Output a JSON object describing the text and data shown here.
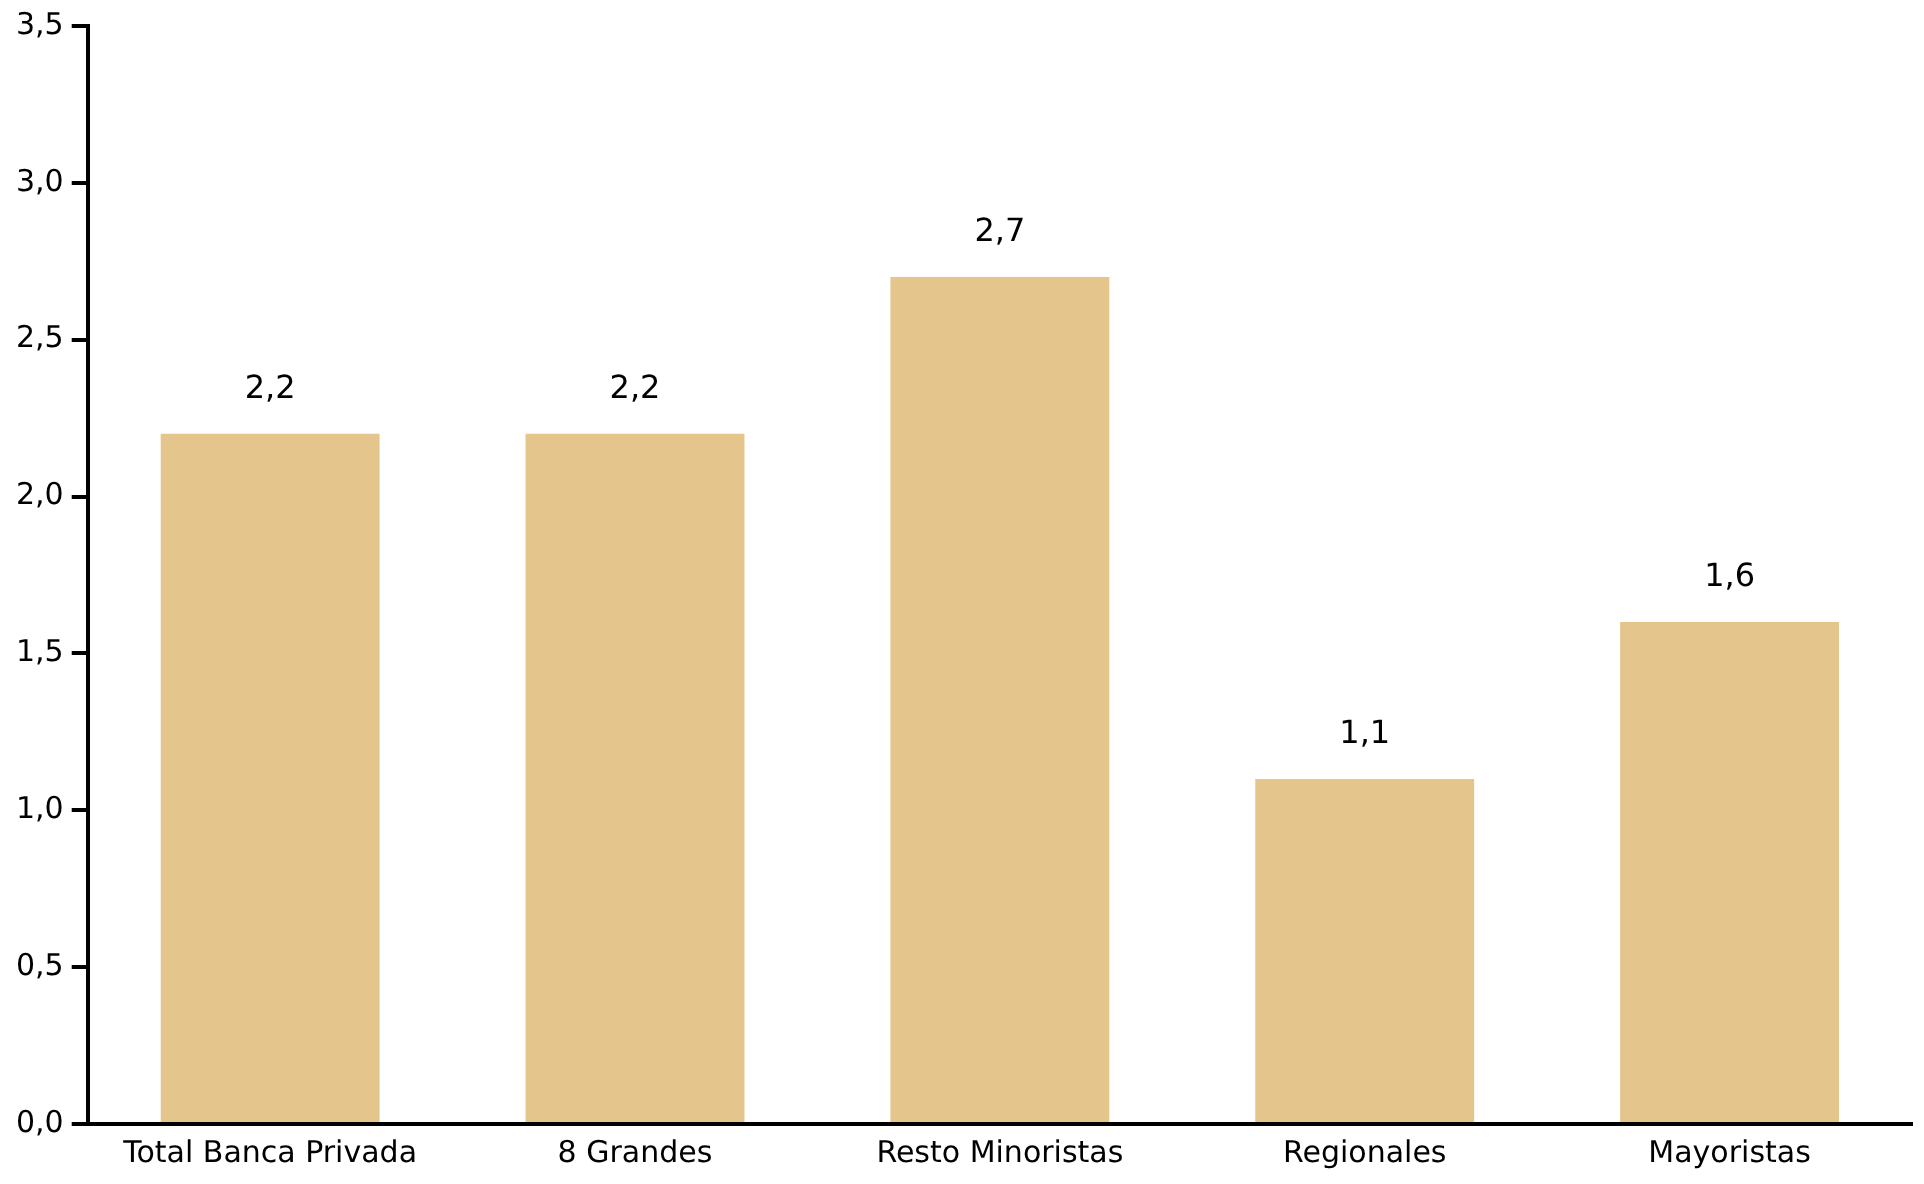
{
  "chart_data": {
    "type": "bar",
    "categories": [
      "Total Banca Privada",
      "8 Grandes",
      "Resto Minoristas",
      "Regionales",
      "Mayoristas"
    ],
    "values": [
      2.2,
      2.2,
      2.7,
      1.1,
      1.6
    ],
    "value_labels": [
      "2,2",
      "2,2",
      "2,7",
      "1,1",
      "1,6"
    ],
    "color": "#e4c68c",
    "ylim": [
      0,
      3.5
    ],
    "yticks": [
      {
        "value": 0,
        "label": "0,0"
      },
      {
        "value": 0.5,
        "label": "0,5"
      },
      {
        "value": 1,
        "label": "1,0"
      },
      {
        "value": 1.5,
        "label": "1,5"
      },
      {
        "value": 2,
        "label": "2,0"
      },
      {
        "value": 2.5,
        "label": "2,5"
      },
      {
        "value": 3,
        "label": "3,0"
      },
      {
        "value": 3.5,
        "label": "3,5"
      }
    ],
    "grid": false,
    "legend": false
  }
}
